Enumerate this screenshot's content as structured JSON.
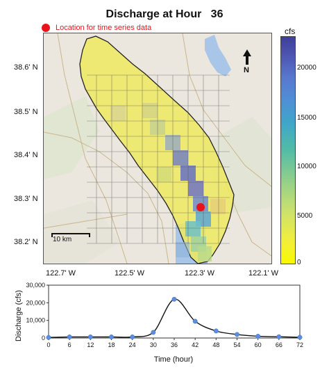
{
  "title": "Discharge at Hour   36",
  "legend": {
    "marker_color": "#e8141b",
    "label": "Location for time series data"
  },
  "map": {
    "lat_labels": [
      "38.6' N",
      "38.5' N",
      "38.4' N",
      "38.3' N",
      "38.2' N"
    ],
    "lon_labels": [
      "122.7' W",
      "122.5' W",
      "122.3' W",
      "122.1' W"
    ],
    "north_label": "N",
    "scale_label": "10 km",
    "colorbar": {
      "unit": "cfs",
      "ticks": [
        "20000",
        "15000",
        "10000",
        "5000",
        "0"
      ]
    }
  },
  "chart_data": {
    "type": "line",
    "ylabel": "Discharge (cfs)",
    "xlabel": "Time (hour)",
    "x": [
      0,
      6,
      12,
      18,
      24,
      30,
      36,
      42,
      48,
      54,
      60,
      66,
      72
    ],
    "y": [
      300,
      600,
      600,
      600,
      600,
      3200,
      22000,
      9500,
      4000,
      2000,
      1000,
      700,
      400
    ],
    "ylim": [
      0,
      30000
    ],
    "xlim": [
      0,
      72
    ],
    "y_ticks": [
      "0",
      "10,000",
      "20,000",
      "30,000"
    ],
    "x_ticks": [
      "0",
      "6",
      "12",
      "18",
      "24",
      "30",
      "36",
      "42",
      "48",
      "54",
      "60",
      "66",
      "72"
    ],
    "marker_color": "#5b8ee0",
    "line_color": "#111111",
    "grid": false
  }
}
